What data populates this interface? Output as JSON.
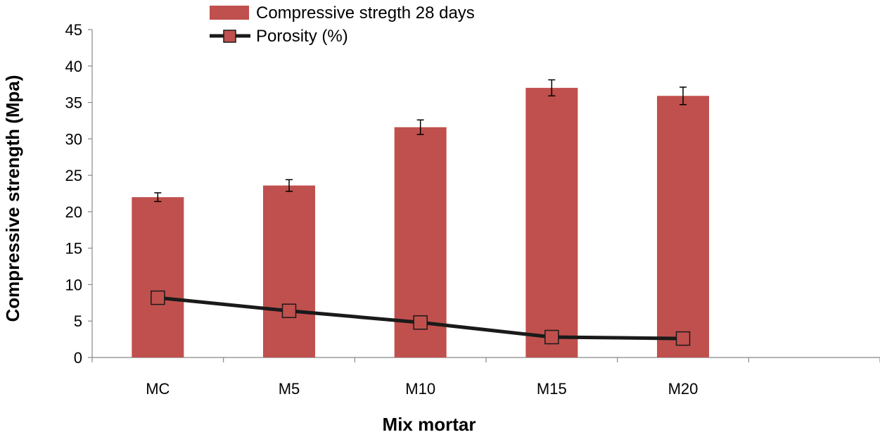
{
  "chart_data": {
    "type": "bar",
    "title": "",
    "xlabel": "Mix mortar",
    "ylabel": "Compressive strength (Mpa)",
    "ylim": [
      0,
      45
    ],
    "ytick_step": 5,
    "grid": false,
    "legend_position": "top-center",
    "categories": [
      "MC",
      "M5",
      "M10",
      "M15",
      "M20"
    ],
    "series": [
      {
        "name": "Compressive stregth 28 days",
        "kind": "bar",
        "color": "#c0504d",
        "values": [
          22.0,
          23.6,
          31.6,
          37.0,
          35.9
        ],
        "errors": [
          0.6,
          0.8,
          1.0,
          1.1,
          1.2
        ]
      },
      {
        "name": "Porosity (%)",
        "kind": "line",
        "color": "#1a1a1a",
        "marker_fill": "#c0504d",
        "values": [
          8.2,
          6.4,
          4.8,
          2.8,
          2.6
        ]
      }
    ]
  }
}
